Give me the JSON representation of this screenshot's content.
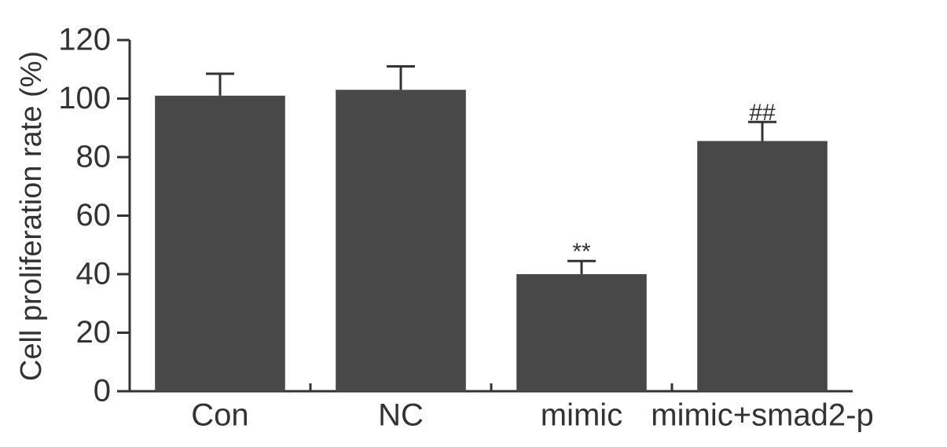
{
  "chart_data": {
    "type": "bar",
    "y_label": "Cell proliferation rate (%)",
    "categories": [
      "Con",
      "NC",
      "mimic",
      "mimic+smad2-p"
    ],
    "values": [
      101,
      103,
      40,
      85.5
    ],
    "errors": [
      7.5,
      8,
      4.5,
      6.5
    ],
    "annotations": [
      null,
      null,
      "**",
      "##"
    ],
    "color": "#484848",
    "ylim": [
      0,
      120
    ],
    "yticks": [
      0,
      20,
      40,
      60,
      80,
      100,
      120
    ]
  }
}
